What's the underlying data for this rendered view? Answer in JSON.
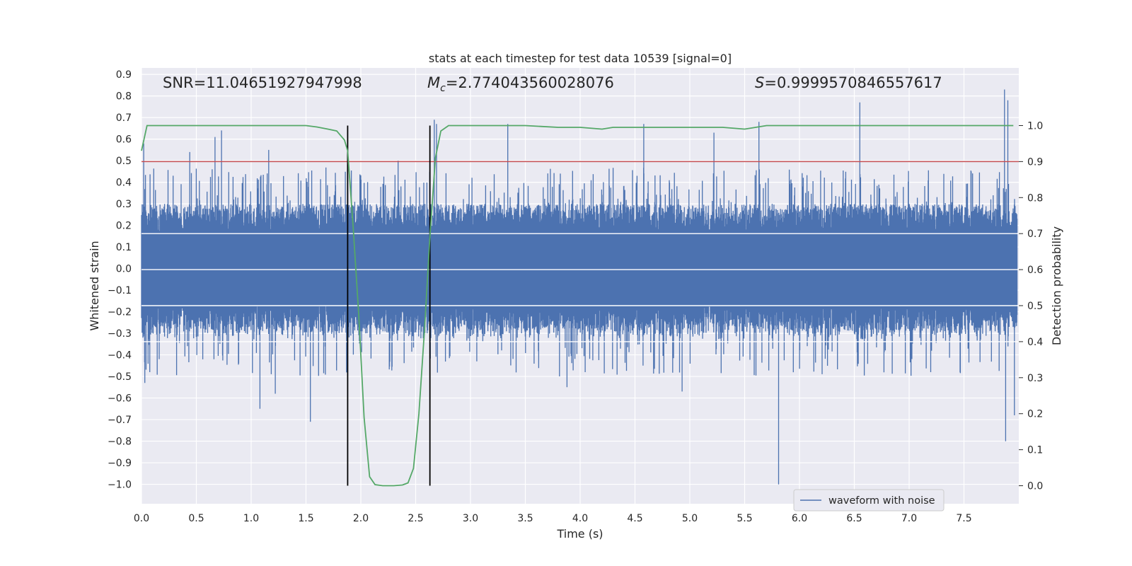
{
  "chart_data": {
    "type": "line",
    "title": "stats at each timestep for test data 10539 [signal=0]",
    "xlabel": "Time (s)",
    "ylabel": "Whitened strain",
    "ylabel_right": "Detection probability",
    "xlim": [
      0.0,
      8.0
    ],
    "ylim": [
      -1.09,
      0.93
    ],
    "ylim_right": [
      -0.05,
      1.16
    ],
    "xticks": [
      0.0,
      0.5,
      1.0,
      1.5,
      2.0,
      2.5,
      3.0,
      3.5,
      4.0,
      4.5,
      5.0,
      5.5,
      6.0,
      6.5,
      7.0,
      7.5
    ],
    "xtick_labels": [
      "0.0",
      "0.5",
      "1.0",
      "1.5",
      "2.0",
      "2.5",
      "3.0",
      "3.5",
      "4.0",
      "4.5",
      "5.0",
      "5.5",
      "6.0",
      "6.5",
      "7.0",
      "7.5"
    ],
    "yticks": [
      0.9,
      0.8,
      0.7,
      0.6,
      0.5,
      0.4,
      0.3,
      0.2,
      0.1,
      0.0,
      -0.1,
      -0.2,
      -0.3,
      -0.4,
      -0.5,
      -0.6,
      -0.7,
      -0.8,
      -0.9,
      -1.0
    ],
    "ytick_labels": [
      "0.9",
      "0.8",
      "0.7",
      "0.6",
      "0.5",
      "0.4",
      "0.3",
      "0.2",
      "0.1",
      "0.0",
      "−0.1",
      "−0.2",
      "−0.3",
      "−0.4",
      "−0.5",
      "−0.6",
      "−0.7",
      "−0.8",
      "−0.9",
      "−1.0"
    ],
    "yticks_right": [
      1.0,
      0.9,
      0.8,
      0.7,
      0.6,
      0.5,
      0.4,
      0.3,
      0.2,
      0.1,
      0.0
    ],
    "ytick_labels_right": [
      "1.0",
      "0.9",
      "0.8",
      "0.7",
      "0.6",
      "0.5",
      "0.4",
      "0.3",
      "0.2",
      "0.1",
      "0.0"
    ],
    "grid": true,
    "legend_position": "lower-right",
    "annotations": {
      "snr": "SNR=11.04651927947998",
      "mc_symbol": "M",
      "mc_sub": "c",
      "mc_value": "=2.774043560028076",
      "s_symbol": "S",
      "s_value": "=0.9999570846557617"
    },
    "series": [
      {
        "name": "waveform with noise",
        "axis": "left",
        "kind": "noise-envelope",
        "color": "#4c72b0",
        "typical_peak": 0.3,
        "notable_spikes": [
          {
            "x": 0.02,
            "y": 0.58
          },
          {
            "x": 0.03,
            "y": -0.53
          },
          {
            "x": 0.44,
            "y": 0.54
          },
          {
            "x": 0.67,
            "y": 0.61
          },
          {
            "x": 0.73,
            "y": 0.64
          },
          {
            "x": 1.08,
            "y": -0.65
          },
          {
            "x": 1.16,
            "y": 0.55
          },
          {
            "x": 1.22,
            "y": -0.58
          },
          {
            "x": 1.54,
            "y": -0.71
          },
          {
            "x": 2.34,
            "y": 0.5
          },
          {
            "x": 2.67,
            "y": 0.69
          },
          {
            "x": 2.69,
            "y": 0.67
          },
          {
            "x": 3.34,
            "y": 0.67
          },
          {
            "x": 3.88,
            "y": -0.55
          },
          {
            "x": 4.58,
            "y": 0.67
          },
          {
            "x": 4.93,
            "y": -0.57
          },
          {
            "x": 5.22,
            "y": 0.63
          },
          {
            "x": 5.63,
            "y": 0.68
          },
          {
            "x": 5.81,
            "y": -1.0
          },
          {
            "x": 6.55,
            "y": 0.77
          },
          {
            "x": 7.87,
            "y": 0.83
          },
          {
            "x": 7.9,
            "y": 0.78
          },
          {
            "x": 7.88,
            "y": -0.8
          },
          {
            "x": 7.96,
            "y": -0.68
          }
        ]
      },
      {
        "name": "",
        "axis": "right",
        "kind": "line",
        "color": "#55a868",
        "x": [
          0.0,
          0.05,
          0.1,
          0.3,
          0.5,
          0.7,
          0.9,
          1.1,
          1.3,
          1.5,
          1.6,
          1.7,
          1.78,
          1.85,
          1.88,
          1.93,
          1.98,
          2.03,
          2.08,
          2.13,
          2.2,
          2.3,
          2.38,
          2.43,
          2.48,
          2.53,
          2.58,
          2.63,
          2.68,
          2.73,
          2.8,
          3.0,
          3.3,
          3.5,
          3.8,
          4.0,
          4.2,
          4.3,
          4.5,
          5.0,
          5.3,
          5.5,
          5.7,
          6.0,
          6.5,
          7.0,
          7.5,
          7.95
        ],
        "y": [
          0.93,
          1.0,
          1.0,
          1.0,
          1.0,
          1.0,
          1.0,
          1.0,
          1.0,
          1.0,
          0.996,
          0.99,
          0.985,
          0.96,
          0.93,
          0.72,
          0.48,
          0.19,
          0.025,
          0.003,
          0.0,
          0.0,
          0.002,
          0.008,
          0.048,
          0.2,
          0.43,
          0.69,
          0.91,
          0.985,
          1.0,
          1.0,
          1.0,
          1.0,
          0.995,
          0.995,
          0.99,
          0.995,
          0.995,
          0.995,
          0.995,
          0.99,
          1.0,
          1.0,
          1.0,
          1.0,
          1.0,
          1.0
        ]
      },
      {
        "name": "",
        "axis": "right",
        "kind": "hline",
        "color": "#c44e52",
        "y": 0.9
      },
      {
        "name": "",
        "axis": "right",
        "kind": "vlines",
        "color": "#000000",
        "x": [
          1.88,
          2.63
        ],
        "ymin": 0.0,
        "ymax": 1.0
      }
    ]
  }
}
